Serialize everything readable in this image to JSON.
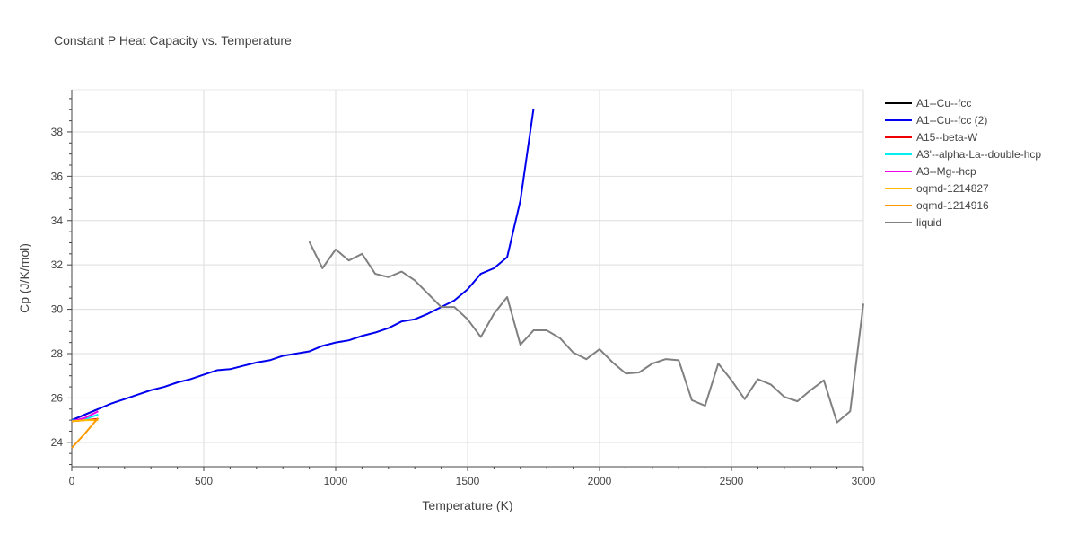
{
  "chart_data": {
    "type": "line",
    "title": "Constant P Heat Capacity vs. Temperature",
    "xlabel": "Temperature (K)",
    "ylabel": "Cp (J/K/mol)",
    "xlim": [
      0,
      3000
    ],
    "ylim": [
      22.9,
      39.9
    ],
    "x_ticks": [
      0,
      500,
      1000,
      1500,
      2000,
      2500,
      3000
    ],
    "x_tick_labels": [
      "0",
      "500",
      "1000",
      "1500",
      "2000",
      "2500",
      "3000"
    ],
    "y_ticks": [
      24,
      26,
      28,
      30,
      32,
      34,
      36,
      38
    ],
    "y_tick_labels": [
      "24",
      "26",
      "28",
      "30",
      "32",
      "34",
      "36",
      "38"
    ],
    "grid": true,
    "legend_position": "top-right outside",
    "series": [
      {
        "name": "A1--Cu--fcc",
        "color": "#000000",
        "x": [
          0,
          50,
          100
        ],
        "y": [
          25.0,
          25.25,
          25.5
        ]
      },
      {
        "name": "A1--Cu--fcc (2)",
        "color": "#0000ee",
        "x": [
          0,
          50,
          100,
          150,
          200,
          250,
          300,
          350,
          400,
          450,
          500,
          550,
          600,
          650,
          700,
          750,
          800,
          850,
          900,
          950,
          1000,
          1050,
          1100,
          1150,
          1200,
          1250,
          1300,
          1350,
          1400,
          1450,
          1500,
          1550,
          1600,
          1650,
          1700,
          1750
        ],
        "y": [
          25.0,
          25.25,
          25.5,
          25.75,
          25.95,
          26.15,
          26.35,
          26.5,
          26.7,
          26.85,
          27.05,
          27.25,
          27.3,
          27.45,
          27.6,
          27.7,
          27.9,
          28.0,
          28.1,
          28.35,
          28.5,
          28.6,
          28.8,
          28.95,
          29.15,
          29.45,
          29.55,
          29.8,
          30.1,
          30.4,
          30.9,
          31.6,
          31.85,
          32.35,
          34.9,
          39.05
        ]
      },
      {
        "name": "A15--beta-W",
        "color": "#ee0000",
        "x": [
          0,
          50,
          100
        ],
        "y": [
          24.95,
          25.0,
          25.05
        ]
      },
      {
        "name": "A3'--alpha-La--double-hcp",
        "color": "#00eeee",
        "x": [
          0,
          50,
          100
        ],
        "y": [
          24.98,
          25.05,
          25.25
        ]
      },
      {
        "name": "A3--Mg--hcp",
        "color": "#ee00ee",
        "x": [
          0,
          50,
          100
        ],
        "y": [
          24.95,
          25.1,
          25.4
        ]
      },
      {
        "name": "oqmd-1214827",
        "color": "#ffbb00",
        "x": [
          0,
          50,
          100
        ],
        "y": [
          24.95,
          25.0,
          25.0
        ]
      },
      {
        "name": "oqmd-1214916",
        "color": "#ff9900",
        "x": [
          0,
          50,
          100
        ],
        "y": [
          23.75,
          24.4,
          25.1
        ]
      },
      {
        "name": "liquid",
        "color": "#808080",
        "x": [
          900,
          950,
          1000,
          1050,
          1100,
          1150,
          1200,
          1250,
          1300,
          1350,
          1400,
          1450,
          1500,
          1550,
          1600,
          1650,
          1700,
          1750,
          1800,
          1850,
          1900,
          1950,
          2000,
          2050,
          2100,
          2150,
          2200,
          2250,
          2300,
          2350,
          2400,
          2450,
          2500,
          2550,
          2600,
          2650,
          2700,
          2750,
          2800,
          2850,
          2900,
          2950,
          3000
        ],
        "y": [
          33.05,
          31.85,
          32.7,
          32.2,
          32.5,
          31.6,
          31.45,
          31.7,
          31.3,
          30.7,
          30.1,
          30.1,
          29.55,
          28.75,
          29.8,
          30.55,
          28.4,
          29.05,
          29.05,
          28.7,
          28.05,
          27.75,
          28.2,
          27.6,
          27.1,
          27.15,
          27.55,
          27.75,
          27.7,
          25.9,
          25.65,
          27.55,
          26.8,
          25.95,
          26.85,
          26.6,
          26.05,
          25.85,
          26.35,
          26.8,
          24.9,
          25.4,
          30.25
        ]
      }
    ]
  }
}
